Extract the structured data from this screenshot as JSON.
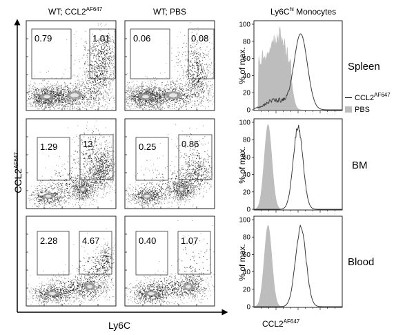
{
  "columns": {
    "ccl2": {
      "main": "WT; CCL2",
      "sup": "AF647"
    },
    "pbs": {
      "main": "WT; PBS"
    },
    "histo": {
      "main": "Ly6C",
      "sup": "hi",
      "rest": " Monocytes"
    }
  },
  "rows": {
    "spleen": "Spleen",
    "bm": "BM",
    "blood": "Blood"
  },
  "dot_axes": {
    "y_main": "CCL2",
    "y_sup": "AF647",
    "x": "Ly6C"
  },
  "histo_axes": {
    "ylabel": "% of max.",
    "xlabel_main": "CCL2",
    "xlabel_sup": "AF647",
    "yticks": [
      "100",
      "80",
      "60",
      "40",
      "20",
      "0"
    ]
  },
  "legend": {
    "line_label_main": "CCL2",
    "line_label_sup": "AF647",
    "fill_label": "PBS"
  },
  "gate_values": {
    "spleen_ccl2": [
      "0.79",
      "1.01"
    ],
    "spleen_pbs": [
      "0.06",
      "0.08"
    ],
    "bm_ccl2": [
      "1.29",
      "13"
    ],
    "bm_pbs": [
      "0.25",
      "0.86"
    ],
    "blood_ccl2": [
      "2.28",
      "4.67"
    ],
    "blood_pbs": [
      "0.40",
      "1.07"
    ]
  },
  "colors": {
    "fill": "#bdbdbd",
    "line": "#3a3a3a"
  }
}
